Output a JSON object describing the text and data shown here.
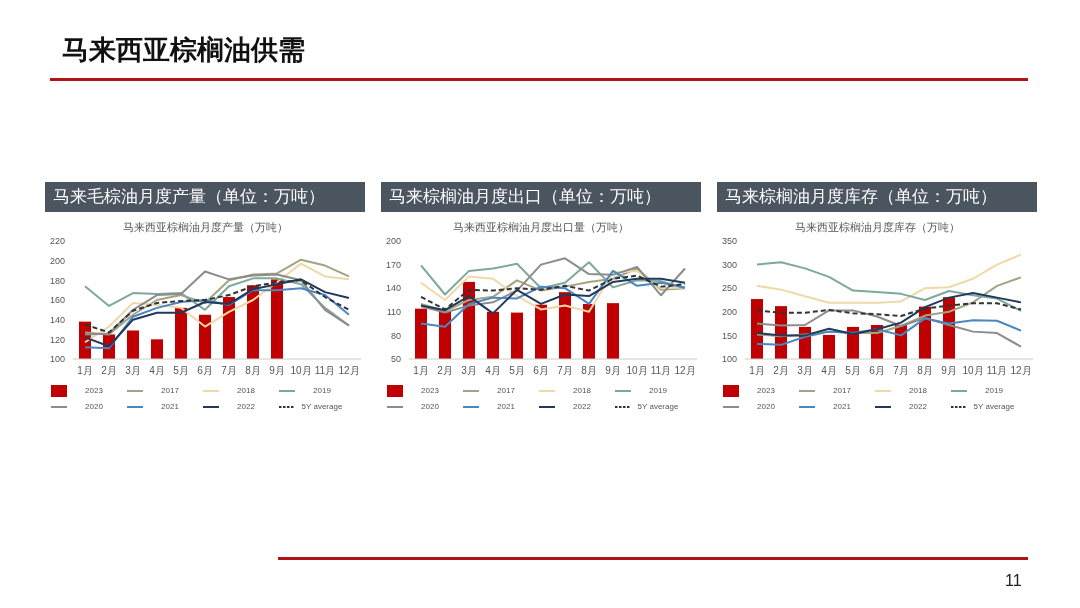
{
  "chart_data": [
    {
      "type": "line",
      "title": "马来毛棕油月度产量（单位：万吨）",
      "subtitle": "马来西亚棕榈油月度产量（万吨）",
      "annotations": [
        "马来西亚棕榈油供需"
      ],
      "categories": [
        "1月",
        "2月",
        "3月",
        "4月",
        "5月",
        "6月",
        "7月",
        "8月",
        "9月",
        "10月",
        "11月",
        "12月"
      ],
      "ylim": [
        100,
        220
      ],
      "yticks": [
        100,
        120,
        140,
        160,
        180,
        200,
        220
      ],
      "grid": false,
      "legend": "bottom",
      "marker": "none",
      "series": [
        {
          "name": "2023",
          "type": "bar",
          "color": "#c00000",
          "values": [
            138,
            125,
            129,
            120,
            152,
            145,
            163,
            175,
            181,
            null,
            null,
            null
          ]
        },
        {
          "name": "2017",
          "color": "#a3a482",
          "values": [
            127,
            125,
            145,
            160,
            165,
            157,
            180,
            186,
            187,
            201,
            195,
            184
          ]
        },
        {
          "name": "2018",
          "color": "#f0d8a8",
          "values": [
            117,
            133,
            157,
            155,
            152,
            133,
            148,
            160,
            178,
            197,
            184,
            181
          ]
        },
        {
          "name": "2019",
          "color": "#7fa89c",
          "values": [
            174,
            154,
            167,
            166,
            167,
            150,
            174,
            182,
            182,
            176,
            152,
            134
          ]
        },
        {
          "name": "2020",
          "color": "#8c8c8c",
          "values": [
            125,
            126,
            150,
            165,
            166,
            189,
            181,
            185,
            186,
            180,
            150,
            134
          ]
        },
        {
          "name": "2021",
          "color": "#4a86c0",
          "values": [
            112,
            111,
            143,
            152,
            158,
            160,
            155,
            170,
            170,
            172,
            165,
            145
          ]
        },
        {
          "name": "2022",
          "color": "#1f3a5c",
          "values": [
            122,
            113,
            140,
            147,
            147,
            158,
            156,
            171,
            176,
            181,
            168,
            162
          ]
        },
        {
          "name": "5Y average",
          "color": "#333333",
          "line_style": "dashed",
          "values": [
            135,
            127,
            149,
            157,
            159,
            160,
            165,
            174,
            178,
            180,
            163,
            150
          ]
        }
      ]
    },
    {
      "type": "line",
      "title": "马来棕榈油月度出口（单位：万吨）",
      "subtitle": "马来西亚棕榈油月度出口量（万吨）",
      "categories": [
        "1月",
        "2月",
        "3月",
        "4月",
        "5月",
        "6月",
        "7月",
        "8月",
        "9月",
        "10月",
        "11月",
        "12月"
      ],
      "ylim": [
        50,
        200
      ],
      "yticks": [
        50,
        80,
        110,
        140,
        170,
        200
      ],
      "grid": false,
      "legend": "bottom",
      "marker": "none",
      "series": [
        {
          "name": "2023",
          "type": "bar",
          "color": "#c00000",
          "values": [
            114,
            110,
            148,
            110,
            109,
            119,
            135,
            120,
            121,
            null,
            null,
            null
          ]
        },
        {
          "name": "2017",
          "color": "#a3a482",
          "values": [
            120,
            111,
            125,
            129,
            150,
            137,
            142,
            148,
            152,
            165,
            138,
            140
          ]
        },
        {
          "name": "2018",
          "color": "#f0d8a8",
          "values": [
            147,
            125,
            155,
            152,
            130,
            113,
            118,
            110,
            160,
            162,
            140,
            141
          ]
        },
        {
          "name": "2019",
          "color": "#7fa89c",
          "values": [
            169,
            132,
            162,
            165,
            171,
            140,
            147,
            173,
            141,
            150,
            149,
            140
          ]
        },
        {
          "name": "2020",
          "color": "#8c8c8c",
          "values": [
            117,
            109,
            118,
            122,
            137,
            170,
            178,
            158,
            157,
            167,
            131,
            165
          ]
        },
        {
          "name": "2021",
          "color": "#4a86c0",
          "values": [
            95,
            91,
            120,
            128,
            127,
            142,
            140,
            120,
            162,
            143,
            147,
            141
          ]
        },
        {
          "name": "2022",
          "color": "#1f3a5c",
          "values": [
            118,
            112,
            130,
            108,
            138,
            120,
            132,
            130,
            148,
            152,
            152,
            147
          ]
        },
        {
          "name": "5Y average",
          "color": "#333333",
          "line_style": "dashed",
          "values": [
            129,
            113,
            138,
            137,
            140,
            138,
            143,
            137,
            152,
            156,
            142,
            145
          ]
        }
      ]
    },
    {
      "type": "line",
      "title": "马来棕榈油月度库存（单位：万吨）",
      "subtitle": "马来西亚棕榈油月度库存（万吨）",
      "annotations": [
        "11"
      ],
      "categories": [
        "1月",
        "2月",
        "3月",
        "4月",
        "5月",
        "6月",
        "7月",
        "8月",
        "9月",
        "10月",
        "11月",
        "12月"
      ],
      "ylim": [
        100,
        350
      ],
      "yticks": [
        100,
        150,
        200,
        250,
        300,
        350
      ],
      "grid": false,
      "legend": "bottom",
      "marker": "none",
      "series": [
        {
          "name": "2023",
          "type": "bar",
          "color": "#c00000",
          "values": [
            227,
            212,
            168,
            151,
            168,
            172,
            172,
            211,
            231,
            null,
            null,
            null
          ]
        },
        {
          "name": "2017",
          "color": "#a3a482",
          "values": [
            152,
            148,
            152,
            158,
            155,
            155,
            170,
            192,
            200,
            220,
            255,
            273
          ]
        },
        {
          "name": "2018",
          "color": "#f0d8a8",
          "values": [
            255,
            247,
            233,
            219,
            219,
            219,
            222,
            250,
            252,
            270,
            300,
            321
          ]
        },
        {
          "name": "2019",
          "color": "#7fa89c",
          "values": [
            300,
            305,
            292,
            274,
            245,
            242,
            238,
            225,
            244,
            235,
            228,
            202
          ]
        },
        {
          "name": "2020",
          "color": "#8c8c8c",
          "values": [
            175,
            171,
            172,
            203,
            203,
            190,
            170,
            187,
            172,
            158,
            155,
            126
          ]
        },
        {
          "name": "2021",
          "color": "#4a86c0",
          "values": [
            132,
            130,
            147,
            158,
            155,
            163,
            150,
            186,
            175,
            182,
            181,
            160
          ]
        },
        {
          "name": "2022",
          "color": "#1f3a5c",
          "values": [
            155,
            150,
            150,
            164,
            153,
            163,
            177,
            210,
            230,
            240,
            230,
            220
          ]
        },
        {
          "name": "5Y average",
          "color": "#333333",
          "line_style": "dashed",
          "values": [
            203,
            198,
            198,
            204,
            197,
            195,
            191,
            207,
            213,
            218,
            218,
            205
          ]
        }
      ]
    }
  ]
}
